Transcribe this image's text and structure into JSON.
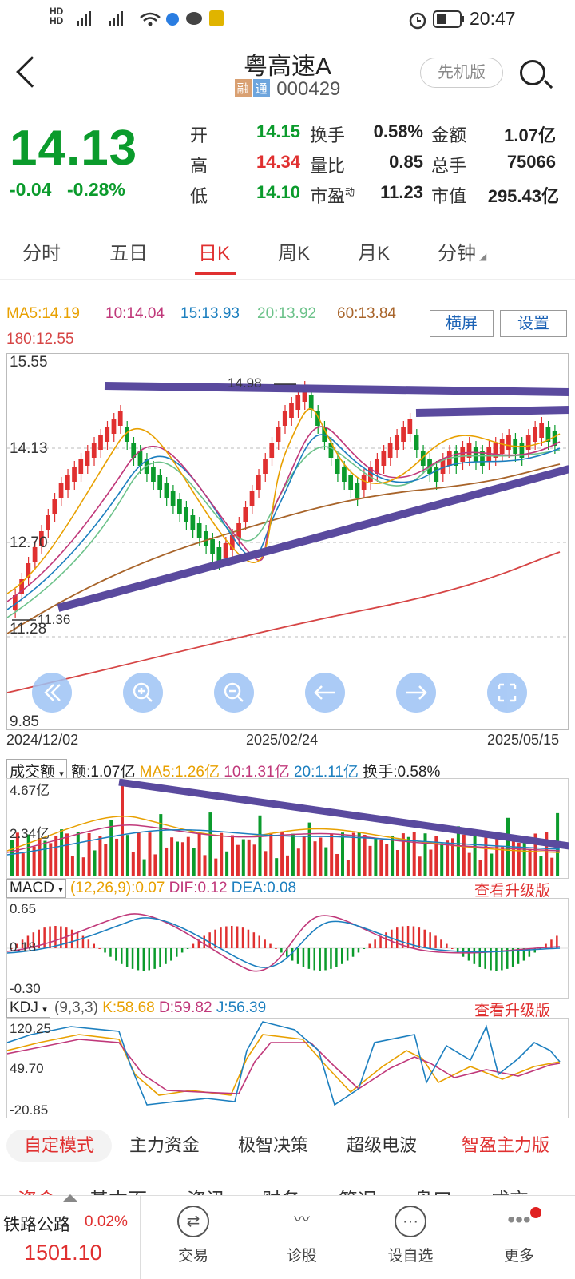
{
  "status": {
    "left_icons": "HD 5G 4G wifi",
    "time": "20:47"
  },
  "header": {
    "title": "粤高速A",
    "tag1": "融",
    "tag2": "通",
    "code": "000429",
    "version_button": "先机版"
  },
  "quote": {
    "price": "14.13",
    "change": "-0.04",
    "change_pct": "-0.28%",
    "rows": [
      {
        "l1": "开",
        "v1": "14.15",
        "l2": "换手",
        "v2": "0.58%",
        "l3": "金额",
        "v3": "1.07亿"
      },
      {
        "l1": "高",
        "v1": "14.34",
        "l2": "量比",
        "v2": "0.85",
        "l3": "总手",
        "v3": "75066"
      },
      {
        "l1": "低",
        "v1": "14.10",
        "l2": "市盈",
        "l2sup": "动",
        "v2": "11.23",
        "l3": "市值",
        "v3": "295.43亿"
      }
    ]
  },
  "tabs": [
    "分时",
    "五日",
    "日K",
    "周K",
    "月K",
    "分钟"
  ],
  "ma": {
    "ma5": "MA5:14.19",
    "ma10": "10:14.04",
    "ma15": "15:13.93",
    "ma20": "20:13.92",
    "ma60": "60:13.84",
    "ma180": "180:12.55",
    "landscape_button": "横屏",
    "settings_button": "设置"
  },
  "kchart": {
    "y_top": "15.55",
    "y_mid": "14.13",
    "y_low": "12.70",
    "y_bottom": "9.85",
    "y_11": "11.28",
    "high_label": "14.98",
    "low_label": "11.36",
    "date_start": "2024/12/02",
    "date_mid": "2025/02/24",
    "date_end": "2025/05/15"
  },
  "volume": {
    "selector": "成交额",
    "amount": "额:1.07亿",
    "ma5": "MA5:1.26亿",
    "ma10": "10:1.31亿",
    "ma20": "20:1.11亿",
    "turnover": "换手:0.58%",
    "y_top": "4.67亿",
    "y_mid": "2.34亿"
  },
  "macd": {
    "selector": "MACD",
    "params": "(12,26,9):0.07",
    "dif": "DIF:0.12",
    "dea": "DEA:0.08",
    "upgrade": "查看升级版",
    "y_top": "0.65",
    "y_mid": "0.18",
    "y_bottom": "-0.30"
  },
  "kdj": {
    "selector": "KDJ",
    "params": "(9,3,3)",
    "k": "K:58.68",
    "d": "D:59.82",
    "j": "J:56.39",
    "upgrade": "查看升级版",
    "y_top": "120.25",
    "y_mid": "49.70",
    "y_bottom": "-20.85"
  },
  "modes": [
    "自定模式",
    "主力资金",
    "极智决策",
    "超级电波",
    "智盈主力版"
  ],
  "subnav": [
    "资金",
    "基本面",
    "资讯",
    "财务",
    "简况",
    "盘口",
    "成交"
  ],
  "bottom": {
    "index_name": "铁路公路",
    "index_pct": "0.02%",
    "index_value": "1501.10",
    "items": [
      "交易",
      "诊股",
      "设自选",
      "更多"
    ]
  },
  "colors": {
    "red": "#e03030",
    "green": "#0b9b2c",
    "blue": "#1b62b5",
    "trend": "#5a4a9e"
  }
}
